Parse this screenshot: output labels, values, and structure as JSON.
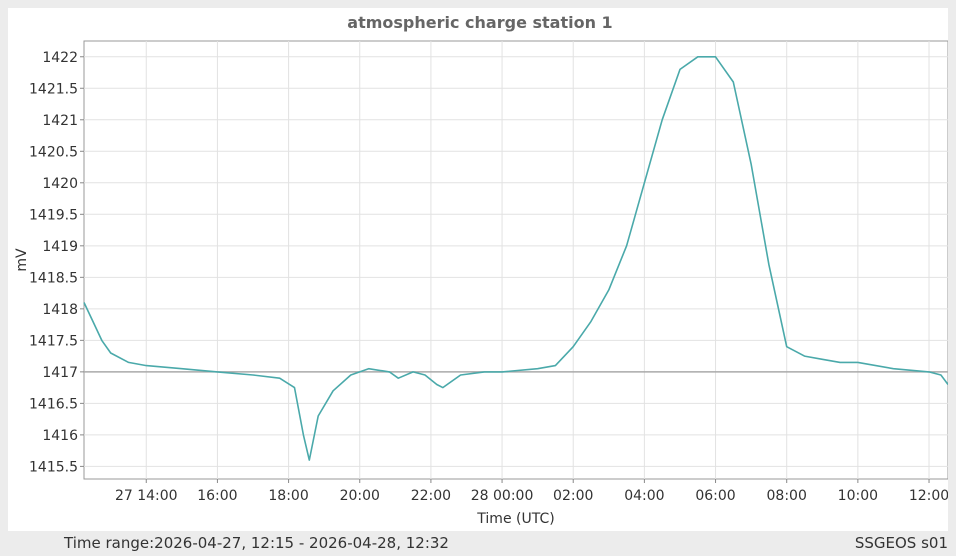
{
  "chart_data": {
    "type": "line",
    "title": "atmospheric charge station 1",
    "xlabel": "Time (UTC)",
    "ylabel": "mV",
    "x_range": [
      "2026-04-27 12:15",
      "2026-04-28 12:32"
    ],
    "ylim": [
      1415.3,
      1422.25
    ],
    "yticks": [
      1415.5,
      1416,
      1416.5,
      1417,
      1417.5,
      1418,
      1418.5,
      1419,
      1419.5,
      1420,
      1420.5,
      1421,
      1421.5,
      1422
    ],
    "ytick_labels": [
      "1415.5",
      "1416",
      "1416.5",
      "1417",
      "1417.5",
      "1418",
      "1418.5",
      "1419",
      "1419.5",
      "1420",
      "1420.5",
      "1421",
      "1421.5",
      "1422"
    ],
    "xticks": [
      "2026-04-27 14:00",
      "2026-04-27 16:00",
      "2026-04-27 18:00",
      "2026-04-27 20:00",
      "2026-04-27 22:00",
      "2026-04-28 00:00",
      "2026-04-28 02:00",
      "2026-04-28 04:00",
      "2026-04-28 06:00",
      "2026-04-28 08:00",
      "2026-04-28 10:00",
      "2026-04-28 12:00"
    ],
    "xtick_labels": [
      "27 14:00",
      "16:00",
      "18:00",
      "20:00",
      "22:00",
      "28 00:00",
      "02:00",
      "04:00",
      "06:00",
      "08:00",
      "10:00",
      "12:00"
    ],
    "reference_line": 1417,
    "grid": true,
    "series": [
      {
        "color": "#4aa9aa",
        "x": [
          "2026-04-27 12:15",
          "2026-04-27 12:30",
          "2026-04-27 12:45",
          "2026-04-27 13:00",
          "2026-04-27 13:30",
          "2026-04-27 14:00",
          "2026-04-27 15:00",
          "2026-04-27 16:00",
          "2026-04-27 17:00",
          "2026-04-27 17:45",
          "2026-04-27 18:10",
          "2026-04-27 18:25",
          "2026-04-27 18:35",
          "2026-04-27 18:50",
          "2026-04-27 19:15",
          "2026-04-27 19:45",
          "2026-04-27 20:15",
          "2026-04-27 20:50",
          "2026-04-27 21:05",
          "2026-04-27 21:30",
          "2026-04-27 21:50",
          "2026-04-27 22:10",
          "2026-04-27 22:20",
          "2026-04-27 22:50",
          "2026-04-27 23:30",
          "2026-04-28 00:00",
          "2026-04-28 01:00",
          "2026-04-28 01:30",
          "2026-04-28 02:00",
          "2026-04-28 02:30",
          "2026-04-28 03:00",
          "2026-04-28 03:30",
          "2026-04-28 04:00",
          "2026-04-28 04:30",
          "2026-04-28 05:00",
          "2026-04-28 05:30",
          "2026-04-28 06:00",
          "2026-04-28 06:30",
          "2026-04-28 07:00",
          "2026-04-28 07:30",
          "2026-04-28 08:00",
          "2026-04-28 08:30",
          "2026-04-28 09:00",
          "2026-04-28 09:30",
          "2026-04-28 10:00",
          "2026-04-28 11:00",
          "2026-04-28 12:00",
          "2026-04-28 12:20",
          "2026-04-28 12:32"
        ],
        "y": [
          1418.1,
          1417.8,
          1417.5,
          1417.3,
          1417.15,
          1417.1,
          1417.05,
          1417.0,
          1416.95,
          1416.9,
          1416.75,
          1416.0,
          1415.6,
          1416.3,
          1416.7,
          1416.95,
          1417.05,
          1417.0,
          1416.9,
          1417.0,
          1416.95,
          1416.8,
          1416.75,
          1416.95,
          1417.0,
          1417.0,
          1417.05,
          1417.1,
          1417.4,
          1417.8,
          1418.3,
          1419.0,
          1420.0,
          1421.0,
          1421.8,
          1422.0,
          1422.0,
          1421.6,
          1420.3,
          1418.7,
          1417.4,
          1417.25,
          1417.2,
          1417.15,
          1417.15,
          1417.05,
          1417.0,
          1416.95,
          1416.8
        ]
      }
    ]
  },
  "footer": {
    "time_range": "Time range:2026-04-27, 12:15 - 2026-04-28, 12:32",
    "source": "SSGEOS s01"
  }
}
